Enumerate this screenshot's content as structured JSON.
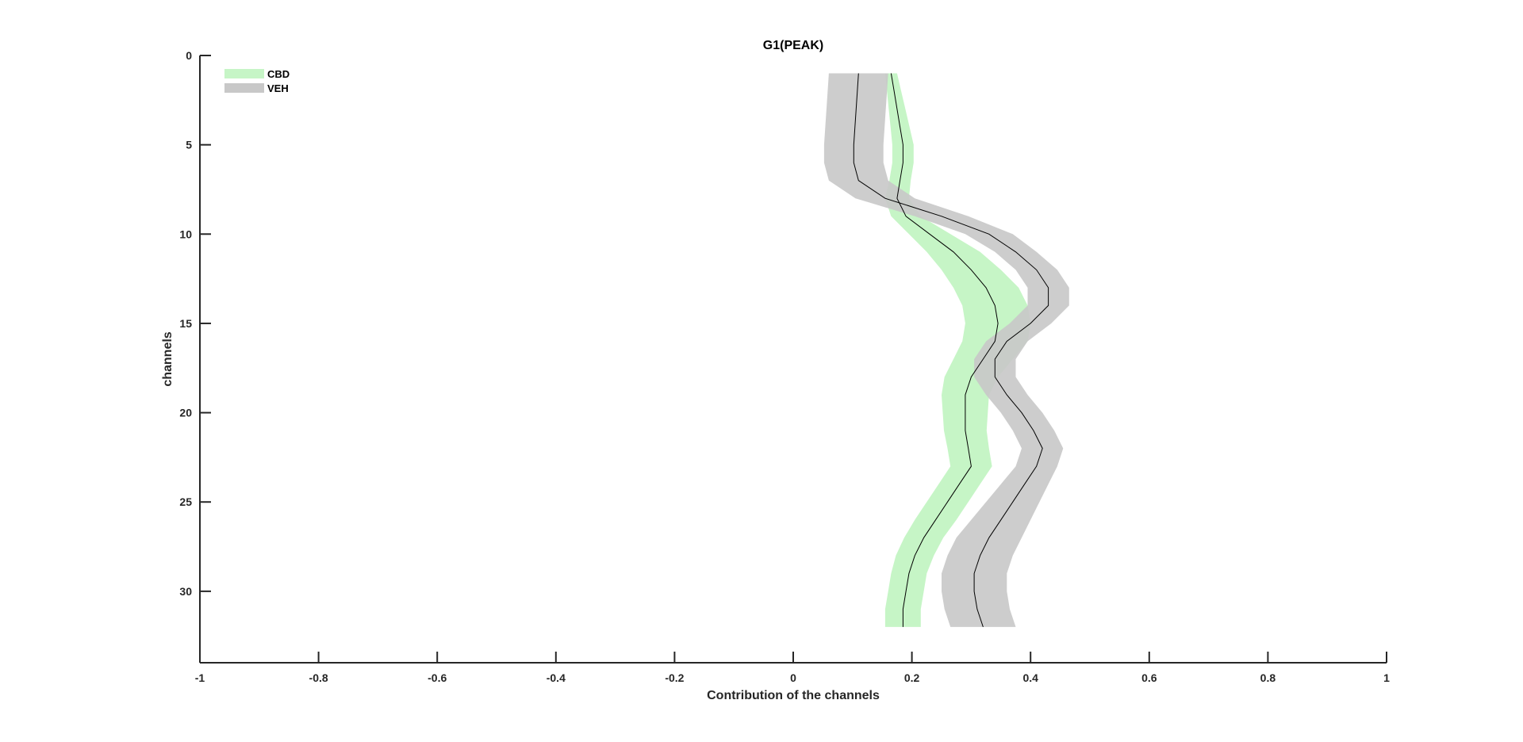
{
  "chart_data": {
    "type": "line",
    "title": "G1(PEAK)",
    "xlabel": "Contribution of the channels",
    "ylabel": "channels",
    "xlim": [
      -1,
      1
    ],
    "ylim": [
      0,
      34
    ],
    "y_reversed": true,
    "grid": false,
    "legend_position": "top-left",
    "x_ticks": [
      "-1",
      "-0.8",
      "-0.6",
      "-0.4",
      "-0.2",
      "0",
      "0.2",
      "0.4",
      "0.6",
      "0.8",
      "1"
    ],
    "y_ticks": [
      "0",
      "5",
      "10",
      "15",
      "20",
      "25",
      "30"
    ],
    "channels": [
      1,
      2,
      3,
      4,
      5,
      6,
      7,
      8,
      9,
      10,
      11,
      12,
      13,
      14,
      15,
      16,
      17,
      18,
      19,
      20,
      21,
      22,
      23,
      24,
      25,
      26,
      27,
      28,
      29,
      30,
      31,
      32
    ],
    "series": [
      {
        "name": "CBD",
        "color": "#c6f5c6",
        "mean": [
          0.165,
          0.17,
          0.175,
          0.18,
          0.185,
          0.185,
          0.18,
          0.175,
          0.19,
          0.23,
          0.27,
          0.3,
          0.325,
          0.34,
          0.345,
          0.34,
          0.32,
          0.3,
          0.29,
          0.29,
          0.29,
          0.295,
          0.3,
          0.28,
          0.26,
          0.24,
          0.22,
          0.205,
          0.195,
          0.19,
          0.185,
          0.185
        ],
        "halfwidth": [
          0.01,
          0.012,
          0.014,
          0.016,
          0.018,
          0.018,
          0.018,
          0.02,
          0.025,
          0.035,
          0.045,
          0.05,
          0.055,
          0.055,
          0.055,
          0.055,
          0.05,
          0.045,
          0.04,
          0.038,
          0.036,
          0.035,
          0.035,
          0.035,
          0.035,
          0.035,
          0.033,
          0.032,
          0.03,
          0.03,
          0.03,
          0.03
        ]
      },
      {
        "name": "VEH",
        "color": "#c8c8c8",
        "mean": [
          0.11,
          0.108,
          0.106,
          0.104,
          0.102,
          0.102,
          0.11,
          0.155,
          0.25,
          0.33,
          0.375,
          0.41,
          0.43,
          0.43,
          0.4,
          0.36,
          0.34,
          0.34,
          0.36,
          0.385,
          0.405,
          0.42,
          0.41,
          0.39,
          0.37,
          0.35,
          0.33,
          0.315,
          0.305,
          0.305,
          0.31,
          0.32
        ],
        "halfwidth": [
          0.05,
          0.05,
          0.05,
          0.05,
          0.05,
          0.05,
          0.05,
          0.05,
          0.045,
          0.04,
          0.035,
          0.035,
          0.035,
          0.035,
          0.035,
          0.035,
          0.035,
          0.035,
          0.035,
          0.035,
          0.035,
          0.035,
          0.035,
          0.04,
          0.045,
          0.05,
          0.055,
          0.055,
          0.055,
          0.055,
          0.055,
          0.055
        ]
      }
    ]
  }
}
